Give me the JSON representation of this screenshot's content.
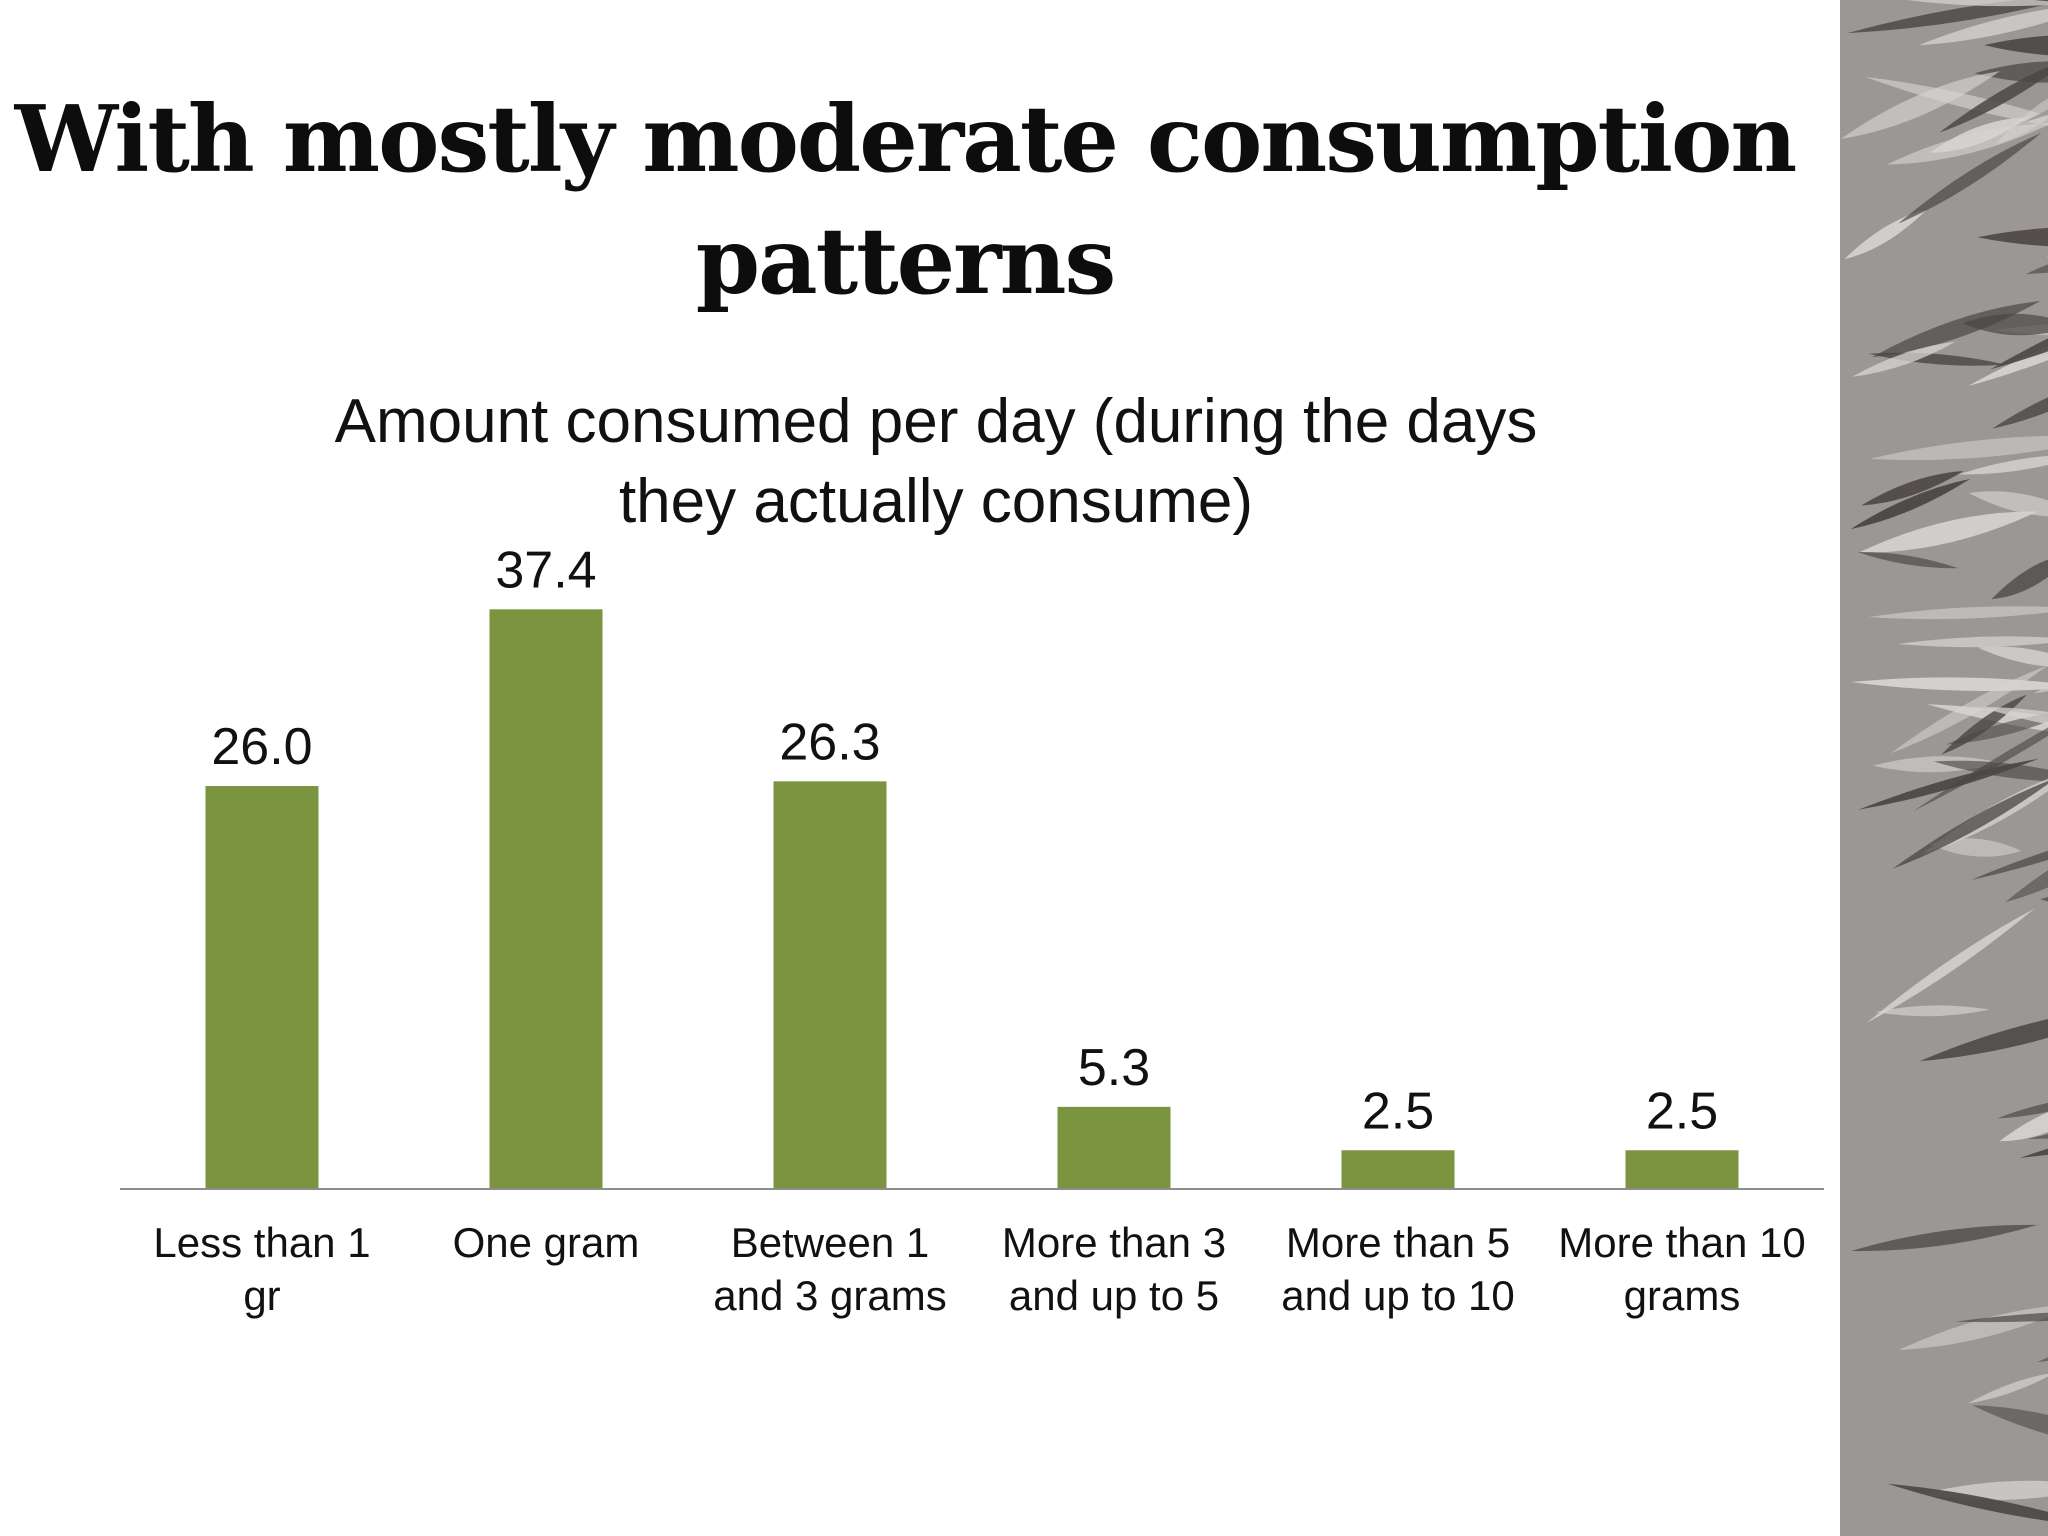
{
  "slide": {
    "title_lines": [
      "With mostly moderate consumption",
      "patterns"
    ]
  },
  "chart_data": {
    "type": "bar",
    "title_lines": [
      "Amount consumed per day (during the days",
      "they actually consume)"
    ],
    "categories": [
      [
        "Less than 1",
        "gr"
      ],
      [
        "One gram"
      ],
      [
        "Between 1",
        "and 3 grams"
      ],
      [
        "More than 3",
        "and up to 5"
      ],
      [
        "More than 5",
        "and up to 10"
      ],
      [
        "More than 10",
        "grams"
      ]
    ],
    "values": [
      26.0,
      37.4,
      26.3,
      5.3,
      2.5,
      2.5
    ],
    "value_labels": [
      "26.0",
      "37.4",
      "26.3",
      "5.3",
      "2.5",
      "2.5"
    ],
    "ylim": [
      0,
      40
    ],
    "grid": false,
    "legend": "none",
    "bar_color": "#7a9440",
    "xlabel": "",
    "ylabel": ""
  },
  "decor": {
    "side_image": "cannabis-leaf-texture"
  }
}
